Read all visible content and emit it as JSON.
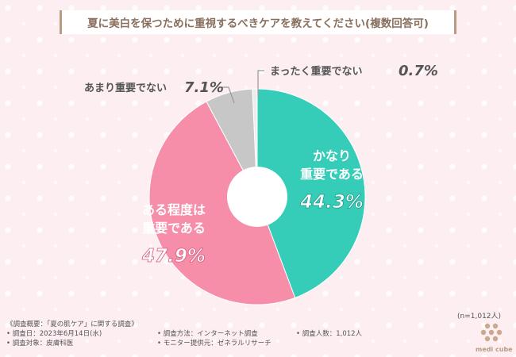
{
  "header": {
    "title": "夏に美白を保つために重視するべきケアを教えてください(複数回答可)"
  },
  "chart_data": {
    "type": "pie",
    "title": "夏に美白を保つために重視するべきケアを教えてください(複数回答可)",
    "slices": [
      {
        "lines": [
          "かなり",
          "重要である"
        ],
        "value_label": "44.3%",
        "value": 44.3,
        "color": "#36cdb8"
      },
      {
        "lines": [
          "ある程度は",
          "重要である"
        ],
        "value_label": "47.9%",
        "value": 47.9,
        "color": "#f68da9"
      },
      {
        "lines": [
          "あまり重要でない"
        ],
        "value_label": "7.1%",
        "value": 7.1,
        "color": "#c7c7c7"
      },
      {
        "lines": [
          "まったく重要でない"
        ],
        "value_label": "0.7%",
        "value": 0.7,
        "color": "#ececec"
      }
    ],
    "sample_size": "(n=1,012人)"
  },
  "footer": {
    "heading": "《調査概要：「夏の肌ケア」に関する調査》",
    "date": "• 調査日：2023年6月14日(水)",
    "method": "• 調査方法：インターネット調査",
    "count": "• 調査人数：1,012人",
    "target": "• 調査対象：皮膚科医",
    "provider": "• モニター提供元：ゼネラルリサーチ"
  },
  "brand": {
    "name": "medi cube"
  }
}
